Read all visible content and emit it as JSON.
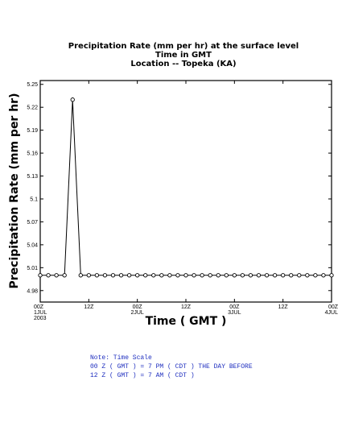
{
  "chart_data": {
    "type": "line",
    "title_lines": [
      "Precipitation Rate (mm per hr) at the surface level",
      "Time in GMT",
      "Location -- Topeka (KA)"
    ],
    "xlabel": "Time ( GMT )",
    "ylabel": "Precipitation Rate (mm per hr)",
    "ylim": [
      4.965,
      5.255
    ],
    "xlim": [
      0,
      72
    ],
    "y_ticks": [
      4.98,
      5.01,
      5.04,
      5.07,
      5.1,
      5.13,
      5.16,
      5.19,
      5.22,
      5.25
    ],
    "y_tick_labels": [
      "4.98",
      "5.01",
      "5.04",
      "5.07",
      "5.1",
      "5.13",
      "5.16",
      "5.19",
      "5.22",
      "5.25"
    ],
    "x_ticks": [
      {
        "x": 0,
        "lines": [
          "00Z",
          "1JUL",
          "2003"
        ]
      },
      {
        "x": 12,
        "lines": [
          "12Z"
        ]
      },
      {
        "x": 24,
        "lines": [
          "00Z",
          "2JUL"
        ]
      },
      {
        "x": 36,
        "lines": [
          "12Z"
        ]
      },
      {
        "x": 48,
        "lines": [
          "00Z",
          "3JUL"
        ]
      },
      {
        "x": 60,
        "lines": [
          "12Z"
        ]
      },
      {
        "x": 72,
        "lines": [
          "00Z",
          "4JUL"
        ]
      }
    ],
    "grid": false,
    "series": [
      {
        "x": [
          0,
          2,
          4,
          6,
          8,
          10,
          12,
          14,
          16,
          18,
          20,
          22,
          24,
          26,
          28,
          30,
          32,
          34,
          36,
          38,
          40,
          42,
          44,
          46,
          48,
          50,
          52,
          54,
          56,
          58,
          60,
          62,
          64,
          66,
          68,
          70,
          72
        ],
        "y": [
          5.0,
          5.0,
          5.0,
          5.0,
          5.23,
          5.0,
          5.0,
          5.0,
          5.0,
          5.0,
          5.0,
          5.0,
          5.0,
          5.0,
          5.0,
          5.0,
          5.0,
          5.0,
          5.0,
          5.0,
          5.0,
          5.0,
          5.0,
          5.0,
          5.0,
          5.0,
          5.0,
          5.0,
          5.0,
          5.0,
          5.0,
          5.0,
          5.0,
          5.0,
          5.0,
          5.0,
          5.0
        ]
      }
    ]
  },
  "note": {
    "lines": [
      "Note: Time Scale",
      "00 Z ( GMT ) = 7 PM ( CDT ) THE DAY BEFORE",
      "12 Z ( GMT ) = 7 AM ( CDT )"
    ],
    "color": "#1f2fbf"
  }
}
